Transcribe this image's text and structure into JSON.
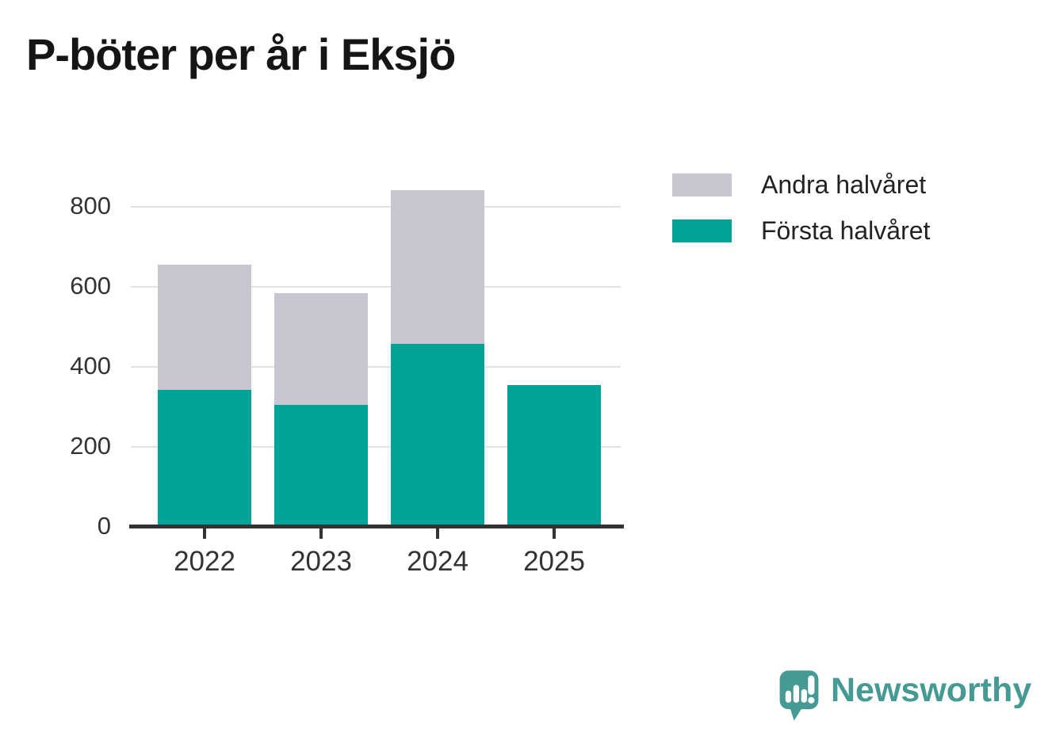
{
  "title": "P-böter per år i Eksjö",
  "chart_data": {
    "type": "bar",
    "stacked": true,
    "title": "P-böter per år i Eksjö",
    "categories": [
      "2022",
      "2023",
      "2024",
      "2025"
    ],
    "series": [
      {
        "name": "Första halvåret",
        "color": "#00a398",
        "values": [
          343,
          305,
          457,
          354
        ]
      },
      {
        "name": "Andra halvåret",
        "color": "#c9c5d1",
        "values": [
          312,
          280,
          385,
          0
        ]
      }
    ],
    "stack_totals": [
      655,
      585,
      842,
      354
    ],
    "xlabel": "",
    "ylabel": "",
    "yticks": [
      0,
      200,
      400,
      600,
      800
    ],
    "ylim": [
      0,
      850
    ],
    "grid": true,
    "legend_position": "top-right"
  },
  "legend": {
    "items": [
      {
        "label": "Andra halvåret",
        "color": "#c9c5d1"
      },
      {
        "label": "Första halvåret",
        "color": "#00a398"
      }
    ]
  },
  "axis": {
    "line_color": "#333333",
    "label_color": "#333333",
    "grid_color": "#e2e2e2"
  },
  "branding": {
    "name": "Newsworthy",
    "color": "#469a94",
    "icon": "bar-chart-speech-bubble-icon"
  }
}
